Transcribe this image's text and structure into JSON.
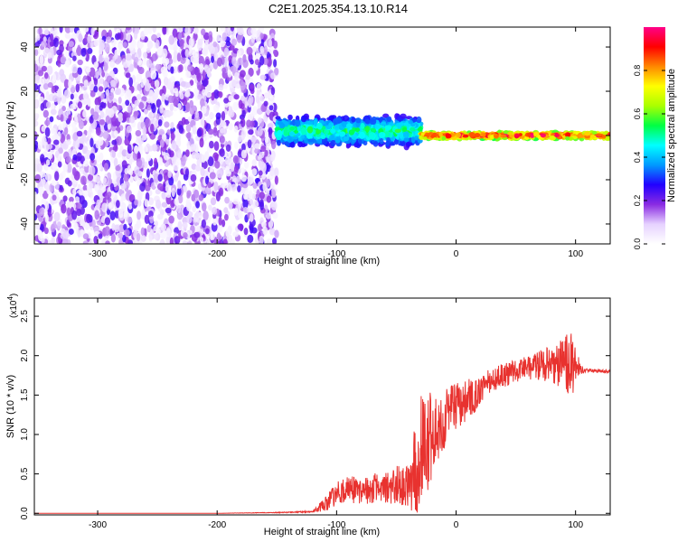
{
  "figure": {
    "title": "C2E1.2025.354.13.10.R14"
  },
  "chart_data": [
    {
      "type": "heatmap",
      "xlabel": "Height of straight line (km)",
      "ylabel": "Frequency (Hz)",
      "xlim": [
        -353,
        129
      ],
      "ylim": [
        -49,
        49
      ],
      "xticks": [
        -300,
        -200,
        -100,
        0,
        100
      ],
      "yticks": [
        -40,
        -20,
        0,
        20,
        40
      ],
      "xtick_labels": [
        "-300",
        "-200",
        "-100",
        "0",
        "100"
      ],
      "ytick_labels": [
        "-40",
        "-20",
        "0",
        "20",
        "40"
      ],
      "grid": false,
      "colorbar": {
        "label": "Normalized spectral amplitude",
        "range": [
          0.0,
          1.0
        ],
        "ticks": [
          0.0,
          0.2,
          0.4,
          0.6,
          0.8
        ],
        "tick_labels": [
          "0.0",
          "0.2",
          "0.4",
          "0.6",
          "0.8"
        ],
        "colormap": [
          "#ffffff",
          "#e6d2ff",
          "#8a2be2",
          "#2200ff",
          "#0099ff",
          "#00ffff",
          "#00ff44",
          "#aaff00",
          "#ffff00",
          "#ff8800",
          "#ff0000",
          "#ff0088"
        ]
      },
      "regions": [
        {
          "x_range": [
            -353,
            -150
          ],
          "y_range": [
            -49,
            49
          ],
          "amplitude": [
            0.02,
            0.25
          ],
          "note": "noise"
        },
        {
          "x_range": [
            -150,
            -30
          ],
          "center_y": 2,
          "spread_y": 8,
          "amplitude": [
            0.2,
            0.6
          ]
        },
        {
          "x_range": [
            -30,
            129
          ],
          "center_y": 0,
          "spread_y": 2,
          "amplitude": [
            0.5,
            1.0
          ]
        }
      ]
    },
    {
      "type": "line",
      "xlabel": "Height of straight line (km)",
      "ylabel": "SNR (10 * v/v)",
      "y_multiplier": "(x10",
      "y_multiplier_exp": "4",
      "y_multiplier_close": ")",
      "xlim": [
        -353,
        129
      ],
      "ylim": [
        -0.02,
        2.73
      ],
      "xticks": [
        -300,
        -200,
        -100,
        0,
        100
      ],
      "yticks": [
        0.0,
        0.5,
        1.0,
        1.5,
        2.0,
        2.5
      ],
      "xtick_labels": [
        "-300",
        "-200",
        "-100",
        "0",
        "100"
      ],
      "ytick_labels": [
        "0.0",
        "0.5",
        "1.0",
        "1.5",
        "2.0",
        "2.5"
      ],
      "grid": false,
      "series": [
        {
          "color": "#e8322f",
          "x": [
            -353,
            -300,
            -250,
            -200,
            -150,
            -120,
            -110,
            -100,
            -90,
            -80,
            -70,
            -60,
            -50,
            -40,
            -35,
            -30,
            -25,
            -20,
            -15,
            -10,
            -5,
            0,
            10,
            20,
            30,
            40,
            50,
            60,
            70,
            80,
            90,
            95,
            100,
            105,
            110,
            129
          ],
          "y": [
            0.0,
            0.0,
            0.0,
            0.0,
            0.01,
            0.02,
            0.12,
            0.25,
            0.3,
            0.3,
            0.32,
            0.32,
            0.35,
            0.38,
            0.5,
            0.75,
            0.9,
            0.95,
            1.05,
            1.2,
            1.3,
            1.35,
            1.45,
            1.55,
            1.7,
            1.75,
            1.8,
            1.85,
            1.88,
            1.9,
            1.9,
            1.88,
            1.85,
            1.82,
            1.81,
            1.8
          ],
          "noise": [
            0.0,
            0.0,
            0.0,
            0.0,
            0.005,
            0.01,
            0.1,
            0.15,
            0.17,
            0.18,
            0.2,
            0.2,
            0.25,
            0.3,
            0.6,
            0.7,
            0.8,
            0.5,
            0.45,
            0.4,
            0.35,
            0.3,
            0.25,
            0.2,
            0.15,
            0.15,
            0.15,
            0.15,
            0.2,
            0.25,
            0.35,
            0.45,
            0.3,
            0.05,
            0.02,
            0.02
          ]
        }
      ]
    }
  ]
}
